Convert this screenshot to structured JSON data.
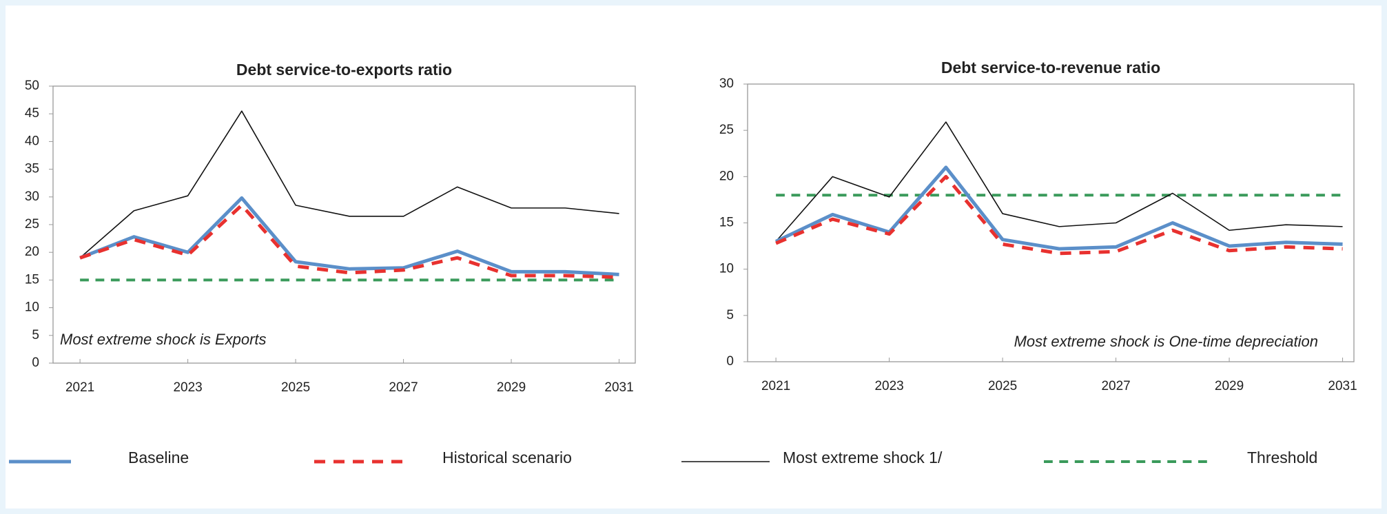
{
  "chart_data": [
    {
      "type": "line",
      "title": "Debt service-to-exports ratio",
      "annotation": "Most extreme shock is Exports",
      "x": [
        2021,
        2022,
        2023,
        2024,
        2025,
        2026,
        2027,
        2028,
        2029,
        2030,
        2031
      ],
      "xlim": [
        2020.5,
        2031.3
      ],
      "xticks": [
        2021,
        2023,
        2025,
        2027,
        2029,
        2031
      ],
      "ylim": [
        0,
        50
      ],
      "yticks": [
        0,
        5,
        10,
        15,
        20,
        25,
        30,
        35,
        40,
        45,
        50
      ],
      "series": [
        {
          "name": "Baseline",
          "color": "#5b8fc9",
          "dash": "solid",
          "width": 5,
          "values": [
            19,
            22.8,
            20,
            29.8,
            18.3,
            17,
            17.2,
            20.2,
            16.5,
            16.5,
            16
          ]
        },
        {
          "name": "Historical scenario",
          "color": "#e8312f",
          "dash": "dashed",
          "width": 5,
          "values": [
            19,
            22.3,
            19.5,
            28.5,
            17.5,
            16.3,
            16.8,
            19,
            15.8,
            15.8,
            15.5
          ]
        },
        {
          "name": "Most extreme shock 1/",
          "color": "#111111",
          "dash": "solid",
          "width": 1.6,
          "values": [
            19,
            27.5,
            30.2,
            45.5,
            28.5,
            26.5,
            26.5,
            31.8,
            28,
            28,
            27
          ]
        },
        {
          "name": "Threshold",
          "color": "#3a9a5b",
          "dash": "dashed",
          "width": 4,
          "values": [
            15,
            15,
            15,
            15,
            15,
            15,
            15,
            15,
            15,
            15,
            15
          ]
        }
      ]
    },
    {
      "type": "line",
      "title": "Debt service-to-revenue ratio",
      "annotation": "Most extreme shock is One-time depreciation",
      "x": [
        2021,
        2022,
        2023,
        2024,
        2025,
        2026,
        2027,
        2028,
        2029,
        2030,
        2031
      ],
      "xlim": [
        2020.5,
        2031.2
      ],
      "xticks": [
        2021,
        2023,
        2025,
        2027,
        2029,
        2031
      ],
      "ylim": [
        0,
        30
      ],
      "yticks": [
        0,
        5,
        10,
        15,
        20,
        25,
        30
      ],
      "series": [
        {
          "color": "#5b8fc9",
          "dash": "solid",
          "width": 5,
          "values": [
            13,
            15.9,
            14,
            21,
            13.2,
            12.2,
            12.4,
            15,
            12.5,
            12.9,
            12.7
          ]
        },
        {
          "color": "#e8312f",
          "dash": "dashed",
          "width": 5,
          "values": [
            12.8,
            15.4,
            13.8,
            20,
            12.7,
            11.7,
            11.9,
            14.2,
            12,
            12.4,
            12.2
          ]
        },
        {
          "color": "#111111",
          "dash": "solid",
          "width": 1.6,
          "values": [
            13,
            20,
            17.8,
            25.9,
            16,
            14.6,
            15,
            18.2,
            14.2,
            14.8,
            14.6
          ]
        },
        {
          "color": "#3a9a5b",
          "dash": "dashed",
          "width": 4,
          "values": [
            18,
            18,
            18,
            18,
            18,
            18,
            18,
            18,
            18,
            18,
            18
          ]
        }
      ]
    }
  ]
}
